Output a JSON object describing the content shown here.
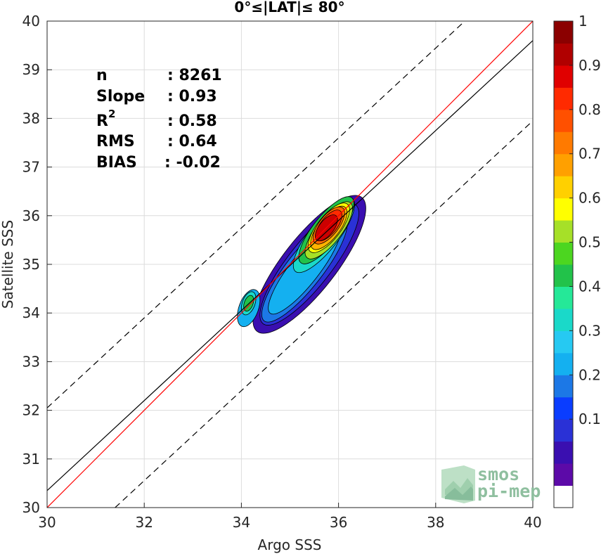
{
  "chart_data": {
    "type": "scatter",
    "title": "0°≤|LAT|≤ 80°",
    "xlabel": "Argo SSS",
    "ylabel": "Satellite SSS",
    "xlim": [
      30,
      40
    ],
    "ylim": [
      30,
      40
    ],
    "xticks": [
      "30",
      "32",
      "34",
      "36",
      "38",
      "40"
    ],
    "yticks": [
      "30",
      "31",
      "32",
      "33",
      "34",
      "35",
      "36",
      "37",
      "38",
      "39",
      "40"
    ],
    "grid": true,
    "stats": [
      {
        "label": "n",
        "value": ": 8261"
      },
      {
        "label": "Slope",
        "value": ": 0.93"
      },
      {
        "label": "R",
        "sup": "2",
        "value": ": 0.58"
      },
      {
        "label": "RMS",
        "value": ": 0.64"
      },
      {
        "label": "BIAS",
        "value": ": -0.02"
      }
    ],
    "lines": {
      "one_to_one": {
        "slope": 1,
        "intercept": 0,
        "color": "#ff0000"
      },
      "regression": {
        "slope": 0.93,
        "x_at_30": 30,
        "y_at_30": 30.35,
        "y_at_40": 39.6,
        "color": "#000000"
      },
      "offset_upper": {
        "points": [
          [
            30,
            32.05
          ],
          [
            38.6,
            40
          ]
        ],
        "style": "dashed"
      },
      "offset_lower": {
        "points": [
          [
            31.4,
            30
          ],
          [
            40,
            37.95
          ]
        ],
        "style": "dashed"
      }
    },
    "density_contours": [
      {
        "level": 0.0,
        "color": "#3a0fb0",
        "center": [
          35.4,
          35.0
        ],
        "rx": 1.75,
        "ry": 0.55,
        "angle": 52
      },
      {
        "level": 0.1,
        "color": "#2a31d6",
        "center": [
          35.4,
          35.0
        ],
        "rx": 1.55,
        "ry": 0.45,
        "angle": 52
      },
      {
        "level": 0.2,
        "color": "#1c78e6",
        "center": [
          35.3,
          34.9
        ],
        "rx": 1.35,
        "ry": 0.37,
        "angle": 52
      },
      {
        "level": 0.3,
        "color": "#14b0f0",
        "center": [
          35.3,
          34.9
        ],
        "rx": 1.15,
        "ry": 0.3,
        "angle": 52
      },
      {
        "level": 0.4,
        "color": "#1ad9c9",
        "center": [
          35.7,
          35.6
        ],
        "rx": 0.95,
        "ry": 0.3,
        "angle": 52
      },
      {
        "level": 0.5,
        "color": "#22c24a",
        "center": [
          35.75,
          35.7
        ],
        "rx": 0.85,
        "ry": 0.28,
        "angle": 52
      },
      {
        "level": 0.6,
        "color": "#a6e028",
        "center": [
          35.8,
          35.7
        ],
        "rx": 0.72,
        "ry": 0.26,
        "angle": 52
      },
      {
        "level": 0.65,
        "color": "#ffff00",
        "center": [
          35.8,
          35.75
        ],
        "rx": 0.62,
        "ry": 0.24,
        "angle": 52
      },
      {
        "level": 0.7,
        "color": "#ffb300",
        "center": [
          35.8,
          35.75
        ],
        "rx": 0.54,
        "ry": 0.22,
        "angle": 52
      },
      {
        "level": 0.8,
        "color": "#ff6a00",
        "center": [
          35.8,
          35.8
        ],
        "rx": 0.46,
        "ry": 0.2,
        "angle": 52
      },
      {
        "level": 0.85,
        "color": "#ff2a00",
        "center": [
          35.8,
          35.8
        ],
        "rx": 0.38,
        "ry": 0.17,
        "angle": 52
      },
      {
        "level": 0.9,
        "color": "#cc0000",
        "center": [
          35.75,
          35.75
        ],
        "rx": 0.32,
        "ry": 0.15,
        "angle": 52
      }
    ],
    "secondary_peak": [
      {
        "level": 0.3,
        "color": "#14b0f0",
        "center": [
          34.15,
          34.1
        ],
        "rx": 0.4,
        "ry": 0.2,
        "angle": 70
      },
      {
        "level": 0.4,
        "color": "#1ad9c9",
        "center": [
          34.15,
          34.2
        ],
        "rx": 0.25,
        "ry": 0.13,
        "angle": 70
      },
      {
        "level": 0.5,
        "color": "#22c24a",
        "center": [
          34.15,
          34.2
        ],
        "rx": 0.17,
        "ry": 0.09,
        "angle": 70
      }
    ],
    "colorbar": {
      "ticks": [
        "0.1",
        "0.2",
        "0.3",
        "0.4",
        "0.5",
        "0.6",
        "0.7",
        "0.8",
        "0.9",
        "1"
      ],
      "colors": [
        "#ffffff",
        "#5c0aa8",
        "#3a0fb0",
        "#2a31d6",
        "#0a3dff",
        "#1c78e6",
        "#14b0f0",
        "#26c9f2",
        "#1ad9c9",
        "#25e898",
        "#22c24a",
        "#4cd620",
        "#a6e028",
        "#ffff00",
        "#ffd000",
        "#ffa000",
        "#ff7a00",
        "#ff5000",
        "#ff2a00",
        "#e00000",
        "#b00000",
        "#8b0000"
      ]
    },
    "logo": {
      "line1": "smos",
      "line2": "pi-mep"
    }
  }
}
